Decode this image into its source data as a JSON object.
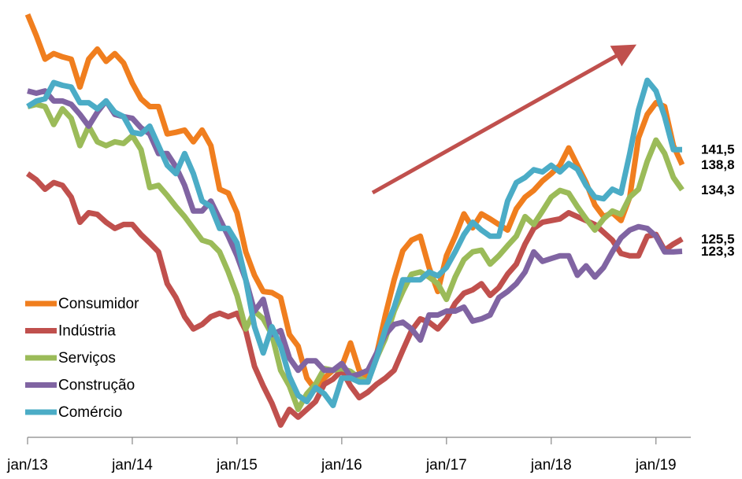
{
  "chart_data": {
    "type": "line",
    "categories": [
      "jan/13",
      null,
      null,
      null,
      null,
      null,
      null,
      null,
      null,
      null,
      null,
      null,
      "jan/14",
      null,
      null,
      null,
      null,
      null,
      null,
      null,
      null,
      null,
      null,
      null,
      "jan/15",
      null,
      null,
      null,
      null,
      null,
      null,
      null,
      null,
      null,
      null,
      null,
      "jan/16",
      null,
      null,
      null,
      null,
      null,
      null,
      null,
      null,
      null,
      null,
      null,
      "jan/17",
      null,
      null,
      null,
      null,
      null,
      null,
      null,
      null,
      null,
      null,
      null,
      "jan/18",
      null,
      null,
      null,
      null,
      null,
      null,
      null,
      null,
      null,
      null,
      null,
      "jan/19",
      null,
      null,
      null
    ],
    "ylim": [
      90,
      168
    ],
    "legend": "lower left",
    "series": [
      {
        "name": "Consumidor",
        "color": "#f07e1e",
        "label_color": "#f07e1e",
        "end_label": "138,8",
        "values": [
          165.7,
          161.9,
          157.7,
          158.7,
          158.1,
          157.7,
          152.7,
          157.7,
          159.5,
          157.3,
          158.7,
          157,
          153.4,
          150.6,
          149.2,
          149.2,
          144.3,
          144.6,
          145,
          142.9,
          145,
          142.2,
          134.4,
          133.7,
          130.2,
          123.2,
          119,
          116.1,
          115.9,
          115,
          108.4,
          106.3,
          100.6,
          98.5,
          100.6,
          102,
          102.7,
          106.9,
          102,
          100.6,
          104.9,
          111.9,
          118.2,
          123.4,
          125.3,
          126,
          120.4,
          116.1,
          122.5,
          126,
          130,
          127.5,
          130,
          129.1,
          128.1,
          127.1,
          130.9,
          133,
          134.2,
          135.9,
          137.2,
          138.7,
          141.8,
          138.7,
          135.6,
          131.6,
          129.5,
          130.2,
          128.8,
          133,
          143.6,
          147.8,
          149.9,
          149.2,
          142.2,
          138.8
        ]
      },
      {
        "name": "Indústria",
        "color": "#c0504d",
        "label_color": "#c0504d",
        "end_label": "125,5",
        "values": [
          137.2,
          136.1,
          134.4,
          135.6,
          135.1,
          133,
          128.5,
          130.2,
          129.9,
          128.5,
          127.4,
          128.1,
          128.1,
          126.3,
          124.8,
          123.2,
          117.5,
          115,
          111.6,
          109.4,
          110.2,
          111.6,
          112.2,
          111.6,
          112.2,
          109.1,
          102.7,
          99.2,
          96.1,
          92.2,
          95,
          93.6,
          95,
          96.4,
          99.5,
          100.4,
          102,
          99.2,
          97.1,
          98.1,
          99.5,
          100.6,
          102,
          105.6,
          109.1,
          111.2,
          110.6,
          109.4,
          111.2,
          114,
          115.8,
          116.4,
          117.5,
          115.4,
          116.8,
          119.2,
          121,
          124.6,
          127.4,
          128.5,
          128.8,
          129.1,
          130.2,
          129.5,
          128.8,
          128.1,
          126.7,
          125.3,
          122.9,
          122.5,
          122.5,
          126,
          126.3,
          123.5,
          124.6,
          125.5
        ]
      },
      {
        "name": "Serviços",
        "color": "#9bbb59",
        "label_color": "#4f6228",
        "end_label": "134,3",
        "values": [
          149.2,
          149.6,
          149.2,
          146,
          148.8,
          147.1,
          142.2,
          145.7,
          142.9,
          142.2,
          142.9,
          142.6,
          144,
          141.5,
          134.7,
          135.1,
          133.3,
          131.3,
          129.5,
          127.4,
          125.3,
          124.8,
          123.2,
          119.6,
          115.4,
          109.4,
          112.6,
          111.2,
          108.4,
          102,
          99.2,
          95,
          97.8,
          99.5,
          102.3,
          102,
          102.3,
          101.8,
          100.6,
          99.9,
          104.2,
          107.7,
          112.6,
          116.1,
          119.2,
          119.6,
          118.7,
          117.5,
          114.7,
          118.7,
          121.8,
          123.2,
          123.5,
          121,
          122.5,
          124.3,
          126,
          129.5,
          128.1,
          130.5,
          133,
          134.2,
          133.7,
          131.3,
          129.1,
          127.1,
          129.1,
          130.5,
          129.9,
          133,
          134.4,
          139.4,
          143.2,
          140.8,
          136.5,
          134.3
        ]
      },
      {
        "name": "Construção",
        "color": "#8064a2",
        "label_color": "#8064a2",
        "end_label": "123,3",
        "values": [
          152,
          151.6,
          152,
          150.2,
          150.2,
          149.6,
          147.8,
          145.7,
          148.2,
          150.2,
          147.8,
          147.4,
          147.1,
          145.4,
          144.3,
          140.8,
          140.8,
          138.4,
          135.1,
          130.5,
          130.5,
          132.3,
          129.1,
          126,
          122.5,
          118.2,
          112.6,
          114.7,
          108.4,
          109.1,
          104.2,
          102,
          103.7,
          103.7,
          102,
          102,
          103.2,
          100.9,
          101.3,
          102,
          105.1,
          108.4,
          110.2,
          110.6,
          109.4,
          107.4,
          111.9,
          111.9,
          112.6,
          112.6,
          113.3,
          110.8,
          111.2,
          111.9,
          115,
          116.1,
          117.5,
          119.6,
          123.2,
          121.5,
          122,
          122.5,
          122.5,
          119,
          120.7,
          118.7,
          120.4,
          123.2,
          125.7,
          127.1,
          127.7,
          127.4,
          126,
          123.2,
          123.2,
          123.3
        ]
      },
      {
        "name": "Comércio",
        "color": "#4bacc6",
        "label_color": "#4bacc6",
        "end_label": "141,5",
        "values": [
          149.2,
          150.2,
          150.6,
          153.5,
          153,
          152.7,
          149.9,
          149.9,
          148.8,
          150.2,
          148.2,
          147.4,
          144.6,
          144.3,
          145.7,
          142.2,
          138.7,
          137.2,
          140.8,
          137.2,
          132.3,
          131.3,
          127.4,
          127.4,
          124.8,
          118.2,
          109.8,
          105.1,
          109.8,
          106.3,
          100.9,
          97.5,
          96.4,
          98.9,
          97.8,
          95.7,
          100.6,
          100.6,
          99.9,
          99.9,
          104.2,
          109.4,
          113.3,
          118.2,
          118.2,
          118.2,
          119.6,
          118.9,
          120.4,
          123.2,
          126.3,
          128.5,
          127.1,
          126,
          126,
          132.3,
          135.6,
          136.5,
          137.9,
          137.5,
          138.7,
          137.5,
          139,
          138,
          135.1,
          133,
          132.7,
          134.4,
          133.7,
          140.8,
          148.6,
          153.9,
          152,
          147.4,
          141.5,
          141.5
        ]
      }
    ]
  }
}
